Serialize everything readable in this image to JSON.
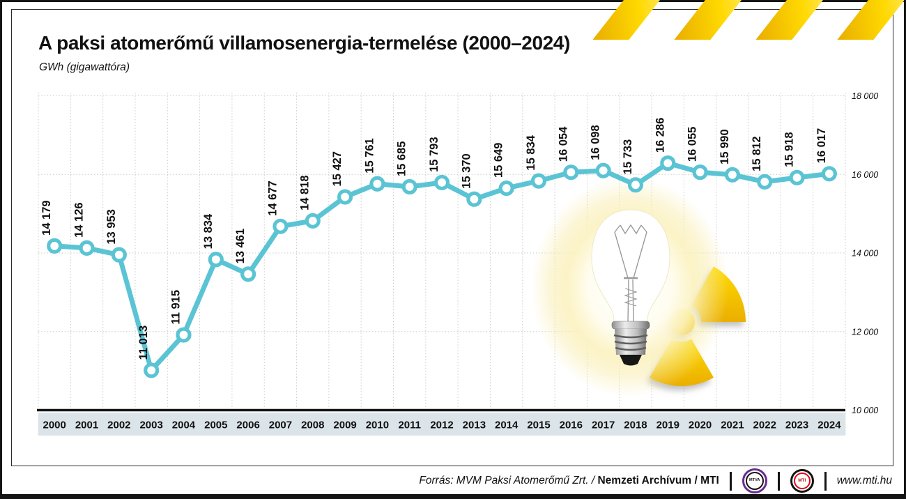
{
  "header": {
    "title": "A paksi atomerőmű villamosenergia-termelése (2000–2024)",
    "subtitle": "GWh (gigawattóra)"
  },
  "chart_data": {
    "type": "line",
    "title": "A paksi atomerőmű villamosenergia-termelése (2000–2024)",
    "ylabel": "GWh (gigawattóra)",
    "xlabel": "",
    "categories": [
      2000,
      2001,
      2002,
      2003,
      2004,
      2005,
      2006,
      2007,
      2008,
      2009,
      2010,
      2011,
      2012,
      2013,
      2014,
      2015,
      2016,
      2017,
      2018,
      2019,
      2020,
      2021,
      2022,
      2023,
      2024
    ],
    "values": [
      14179,
      14126,
      13953,
      11013,
      11915,
      13834,
      13461,
      14677,
      14818,
      15427,
      15761,
      15685,
      15793,
      15370,
      15649,
      15834,
      16054,
      16098,
      15733,
      16286,
      16055,
      15990,
      15812,
      15918,
      16017
    ],
    "ylim": [
      10000,
      18000
    ],
    "yticks": [
      {
        "value": 10000,
        "label": "10 000"
      },
      {
        "value": 12000,
        "label": "12 000"
      },
      {
        "value": 14000,
        "label": "14 000"
      },
      {
        "value": 16000,
        "label": "16 000"
      },
      {
        "value": 18000,
        "label": "18 000"
      }
    ],
    "grid": "dotted",
    "legend": "none",
    "line_color": "#5bc4d4",
    "marker": "white-filled-circle",
    "value_labels": "rotated-90-above-points"
  },
  "decorations": {
    "hazard_stripes_icon": "yellow-black diagonal warning tape, top right",
    "light_bulb_icon": "glowing incandescent light bulb",
    "radiation_icon": "yellow radioactive trefoil symbol",
    "accent_yellow": "#f6c800",
    "accent_teal": "#5bc4d4",
    "band_color": "#dbe4e8"
  },
  "footer": {
    "source_prefix": "Forrás: MVM Paksi Atomerőmű Zrt. / ",
    "source_archive": "Nemzeti Archívum",
    "source_slash": " / ",
    "source_mti": "MTI",
    "mtva_label": "MTVA",
    "mti_label": "MTI",
    "url": "www.mti.hu"
  }
}
